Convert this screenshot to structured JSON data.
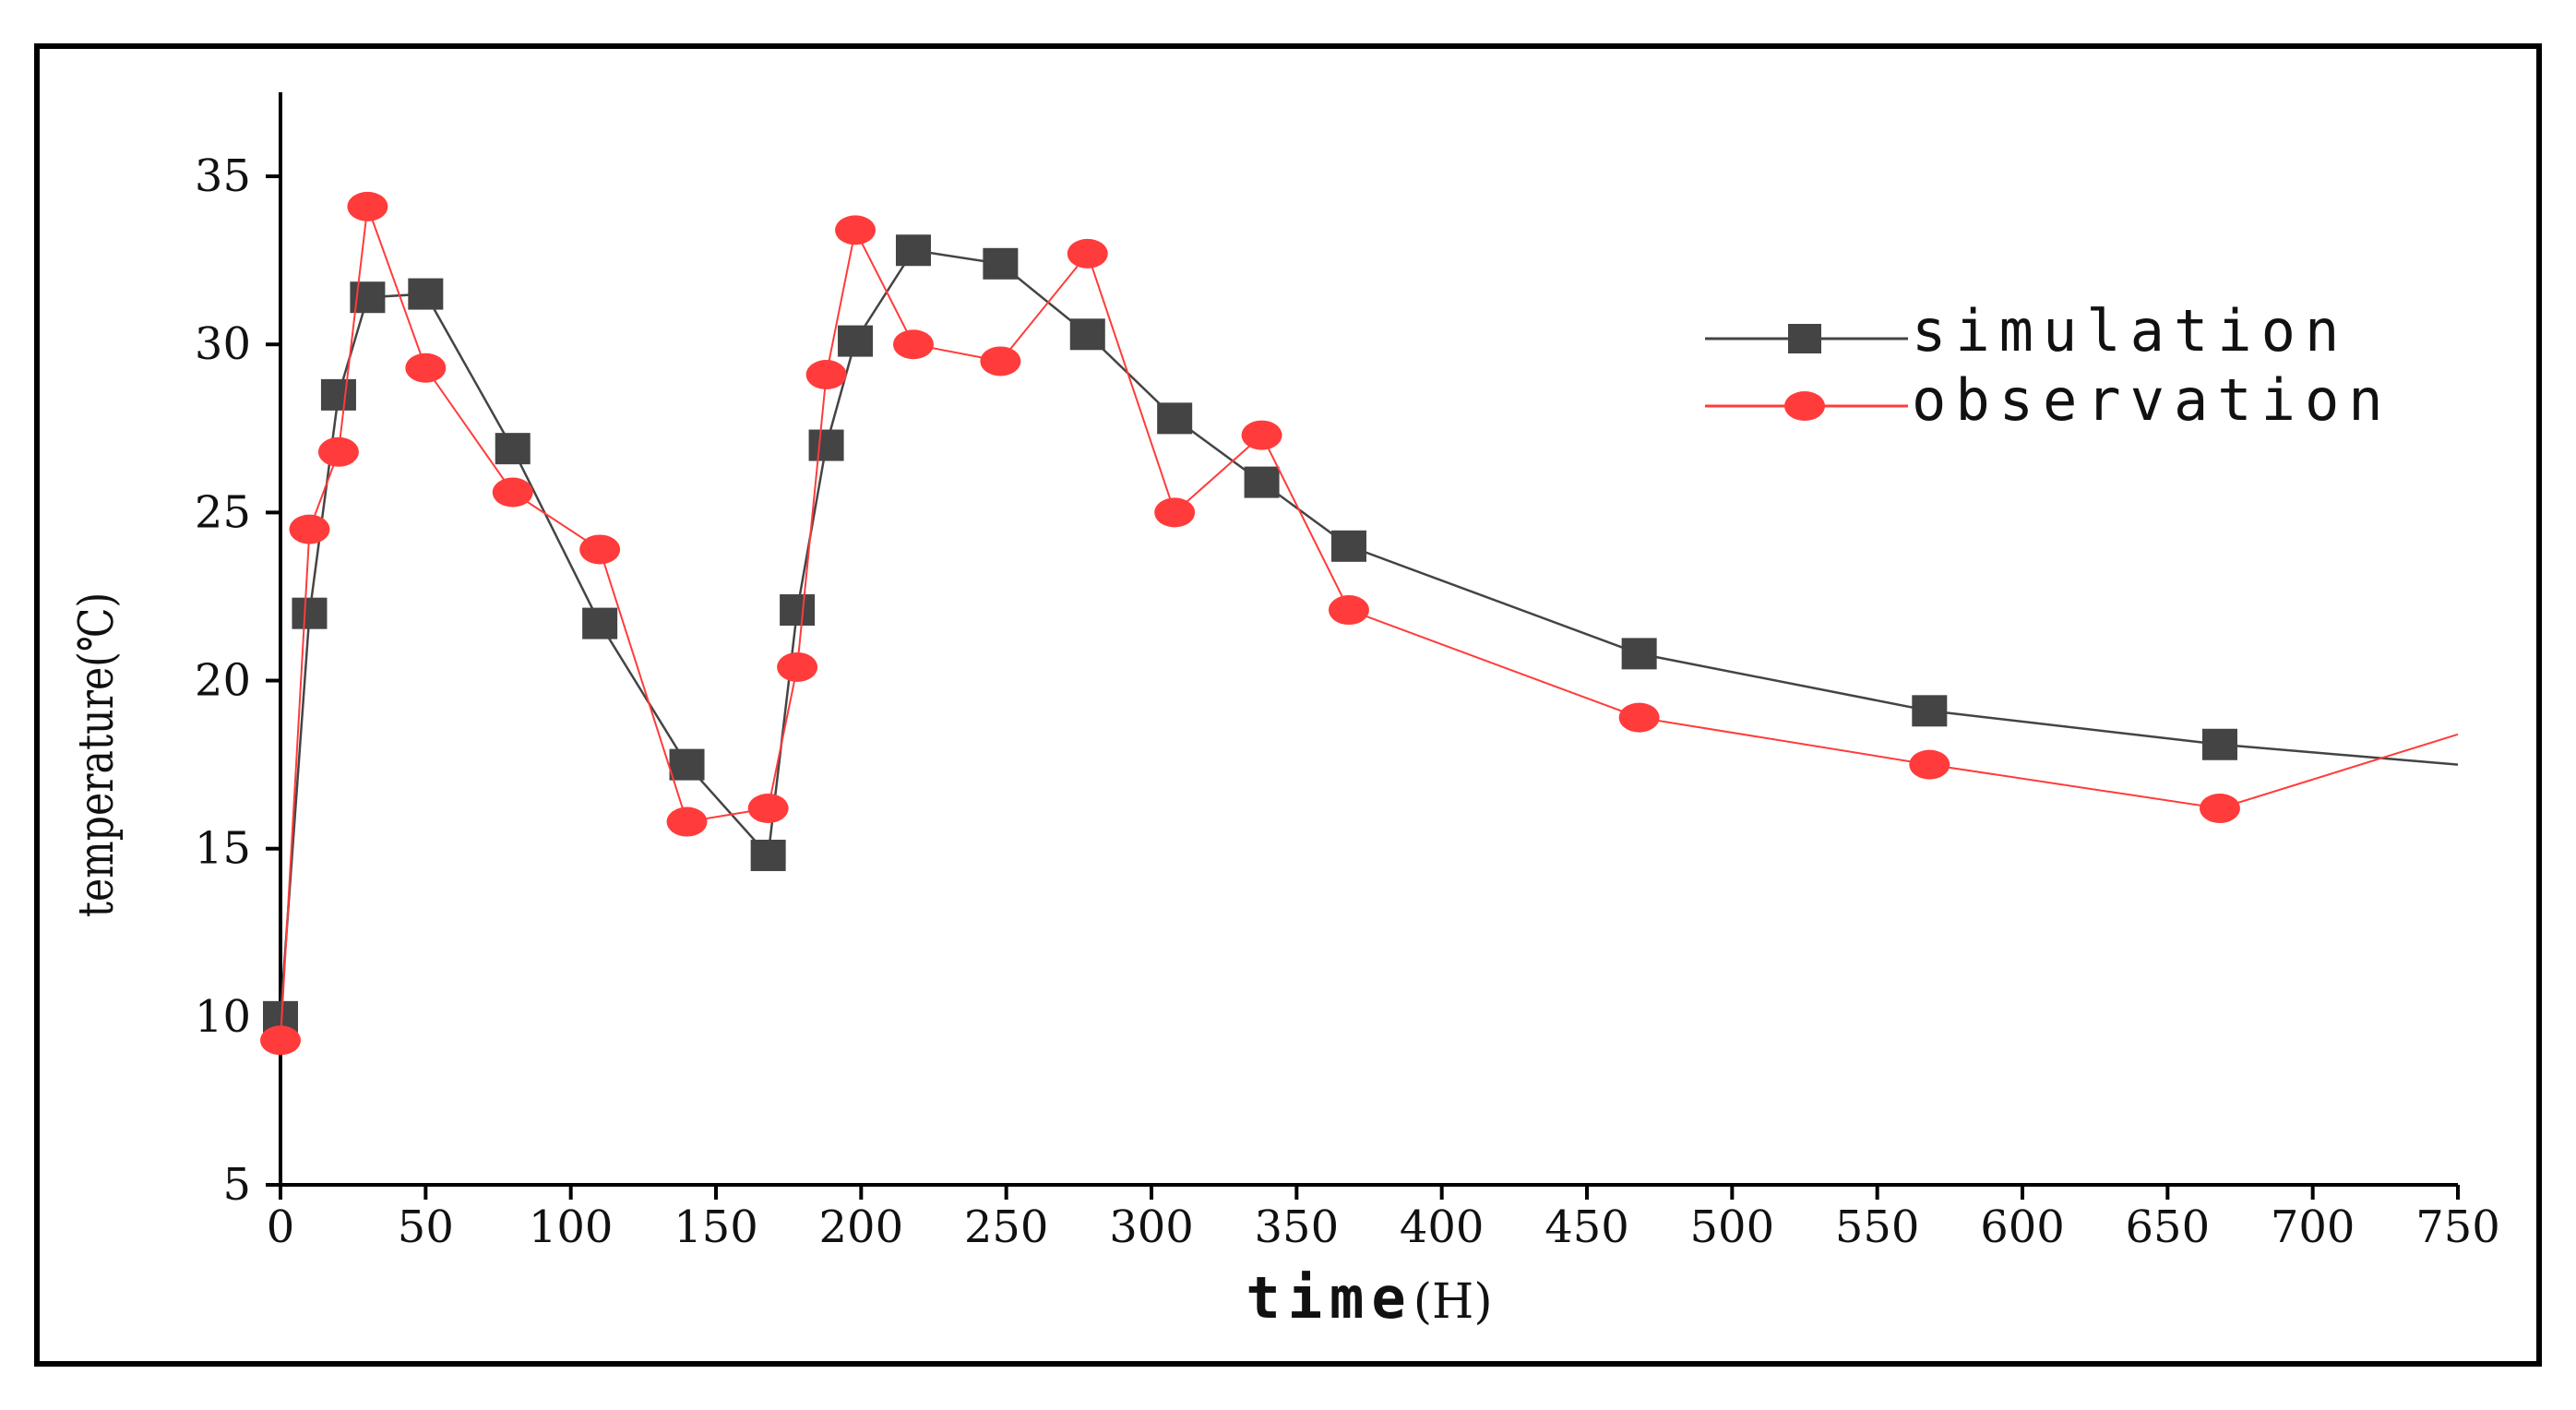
{
  "chart_data": {
    "type": "line",
    "title": "",
    "xlabel": "time",
    "xlabel_unit": "(H)",
    "ylabel": "temperature(℃)",
    "xlim": [
      0,
      750
    ],
    "ylim": [
      5,
      37.5
    ],
    "xticks": [
      0,
      50,
      100,
      150,
      200,
      250,
      300,
      350,
      400,
      450,
      500,
      550,
      600,
      650,
      700,
      750
    ],
    "yticks": [
      5,
      10,
      15,
      20,
      25,
      30,
      35
    ],
    "grid": false,
    "legend_position": "top-right",
    "series": [
      {
        "name": "simulation",
        "color": "#444444",
        "marker": "square",
        "x": [
          0,
          10,
          20,
          30,
          50,
          80,
          110,
          140,
          168,
          178,
          188,
          198,
          218,
          248,
          278,
          308,
          338,
          368,
          468,
          568,
          668,
          750
        ],
        "y": [
          10.0,
          22.0,
          28.5,
          31.4,
          31.5,
          26.9,
          21.7,
          17.5,
          14.8,
          22.1,
          27.0,
          30.1,
          32.8,
          32.4,
          30.3,
          27.8,
          25.9,
          24.0,
          20.8,
          19.1,
          18.1,
          17.5
        ],
        "markers_shown": [
          true,
          true,
          true,
          true,
          true,
          true,
          true,
          true,
          true,
          true,
          true,
          true,
          true,
          true,
          true,
          true,
          true,
          true,
          true,
          true,
          true,
          false
        ]
      },
      {
        "name": "observation",
        "color": "#ff3b3b",
        "marker": "circle",
        "x": [
          0,
          10,
          20,
          30,
          50,
          80,
          110,
          140,
          168,
          178,
          188,
          198,
          218,
          248,
          278,
          308,
          338,
          368,
          468,
          568,
          668,
          750
        ],
        "y": [
          9.3,
          24.5,
          26.8,
          34.1,
          29.3,
          25.6,
          23.9,
          15.8,
          16.2,
          20.4,
          29.1,
          33.4,
          30.0,
          29.5,
          32.7,
          25.0,
          27.3,
          22.1,
          18.9,
          17.5,
          16.2,
          18.4
        ],
        "markers_shown": [
          true,
          true,
          true,
          true,
          true,
          true,
          true,
          true,
          true,
          true,
          true,
          true,
          true,
          true,
          true,
          true,
          true,
          true,
          true,
          true,
          true,
          false
        ]
      }
    ]
  }
}
